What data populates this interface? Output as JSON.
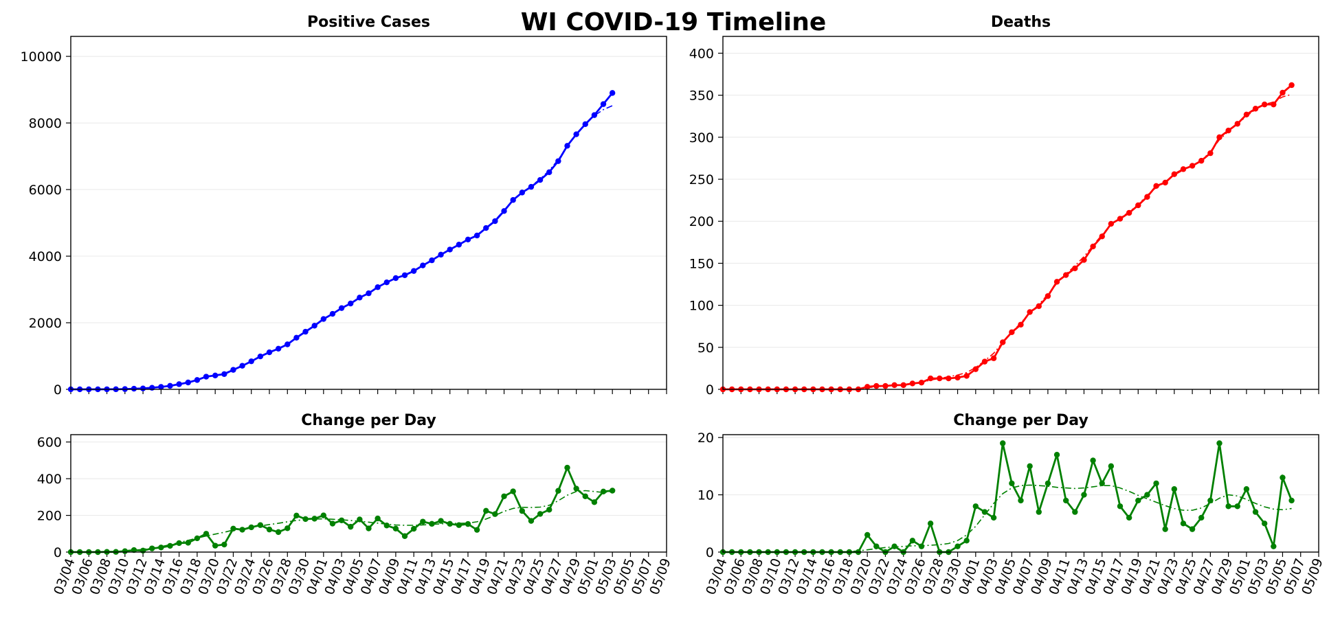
{
  "suptitle": "WI COVID-19 Timeline",
  "x_ticks": [
    "03/04",
    "03/06",
    "03/08",
    "03/10",
    "03/12",
    "03/14",
    "03/16",
    "03/18",
    "03/20",
    "03/22",
    "03/24",
    "03/26",
    "03/28",
    "03/30",
    "04/01",
    "04/03",
    "04/05",
    "04/07",
    "04/09",
    "04/11",
    "04/13",
    "04/15",
    "04/17",
    "04/19",
    "04/21",
    "04/23",
    "04/25",
    "04/27",
    "04/29",
    "05/01",
    "05/03",
    "05/05",
    "05/07",
    "05/09"
  ],
  "colors": {
    "cases": "#0000ff",
    "deaths": "#ff0000",
    "change": "#008000"
  },
  "chart_data": [
    {
      "type": "line",
      "title": "Positive Cases",
      "x_start": "03/04",
      "x_end": "05/09",
      "ylim": [
        0,
        10600
      ],
      "yticks": [
        0,
        2000,
        4000,
        6000,
        8000,
        10000
      ],
      "grid": "y",
      "series": [
        {
          "style": "solid-markers",
          "values": [
            1,
            1,
            1,
            1,
            2,
            3,
            8,
            19,
            27,
            47,
            72,
            106,
            155,
            206,
            281,
            381,
            416,
            457,
            585,
            707,
            842,
            989,
            1112,
            1221,
            1351,
            1550,
            1730,
            1912,
            2112,
            2267,
            2440,
            2578,
            2756,
            2885,
            3068,
            3213,
            3341,
            3428,
            3555,
            3721,
            3875,
            4045,
            4199,
            4346,
            4499,
            4620,
            4845,
            5052,
            5356,
            5687,
            5911,
            6081,
            6289,
            6520,
            6854,
            7314,
            7660,
            7964,
            8236,
            8566,
            8901
          ]
        },
        {
          "style": "dashdot",
          "values": [
            1,
            1,
            1,
            1,
            2,
            3,
            6,
            15,
            25,
            43,
            68,
            102,
            150,
            205,
            280,
            370,
            425,
            480,
            590,
            710,
            840,
            985,
            1110,
            1225,
            1355,
            1540,
            1720,
            1905,
            2100,
            2265,
            2435,
            2580,
            2750,
            2890,
            3060,
            3210,
            3340,
            3440,
            3560,
            3720,
            3875,
            4040,
            4195,
            4345,
            4495,
            4640,
            4850,
            5080,
            5380,
            5690,
            5910,
            6100,
            6320,
            6570,
            6900,
            7300,
            7650,
            7950,
            8220,
            8400,
            8520
          ]
        }
      ]
    },
    {
      "type": "line",
      "title": "Deaths",
      "x_start": "03/04",
      "x_end": "05/09",
      "ylim": [
        0,
        420
      ],
      "yticks": [
        0,
        50,
        100,
        150,
        200,
        250,
        300,
        350,
        400
      ],
      "grid": "y",
      "series": [
        {
          "style": "solid-markers",
          "values": [
            0,
            0,
            0,
            0,
            0,
            0,
            0,
            0,
            0,
            0,
            0,
            0,
            0,
            0,
            0,
            0,
            3,
            4,
            4,
            5,
            5,
            7,
            8,
            13,
            13,
            13,
            14,
            16,
            24,
            33,
            37,
            56,
            68,
            77,
            92,
            99,
            111,
            128,
            136,
            144,
            154,
            170,
            182,
            197,
            203,
            210,
            219,
            229,
            242,
            246,
            256,
            262,
            266,
            272,
            281,
            300,
            308,
            316,
            327,
            334,
            339,
            339,
            353,
            362
          ]
        },
        {
          "style": "dashdot",
          "values": [
            0,
            0,
            0,
            0,
            0,
            0,
            0,
            0,
            0,
            0,
            0,
            0,
            0,
            0,
            0,
            0,
            2,
            3,
            4,
            5,
            6,
            7,
            8,
            11,
            13,
            15,
            17,
            20,
            26,
            34,
            43,
            56,
            68,
            79,
            91,
            101,
            113,
            126,
            137,
            147,
            158,
            171,
            184,
            196,
            204,
            211,
            220,
            231,
            240,
            247,
            255,
            261,
            266,
            272,
            283,
            297,
            307,
            316,
            325,
            333,
            339,
            342,
            348,
            351
          ]
        }
      ]
    },
    {
      "type": "line",
      "title": "Change per Day",
      "x_start": "03/04",
      "x_end": "05/09",
      "ylim": [
        0,
        640
      ],
      "yticks": [
        0,
        200,
        400,
        600
      ],
      "grid": "y",
      "series": [
        {
          "style": "solid-markers",
          "values": [
            0,
            0,
            0,
            0,
            1,
            1,
            5,
            11,
            8,
            20,
            25,
            34,
            49,
            51,
            75,
            100,
            35,
            41,
            128,
            122,
            135,
            147,
            123,
            109,
            130,
            199,
            180,
            182,
            200,
            155,
            173,
            138,
            178,
            129,
            183,
            145,
            128,
            87,
            127,
            166,
            154,
            170,
            154,
            147,
            153,
            121,
            225,
            207,
            304,
            331,
            224,
            170,
            208,
            231,
            334,
            460,
            346,
            304,
            272,
            330,
            335
          ]
        },
        {
          "style": "dashdot",
          "values": [
            0,
            0,
            0,
            0,
            1,
            2,
            5,
            10,
            15,
            22,
            30,
            40,
            52,
            64,
            76,
            88,
            98,
            108,
            120,
            128,
            136,
            143,
            150,
            157,
            165,
            172,
            177,
            180,
            181,
            179,
            176,
            172,
            168,
            163,
            158,
            152,
            148,
            146,
            146,
            148,
            151,
            154,
            156,
            157,
            158,
            165,
            180,
            200,
            222,
            238,
            244,
            243,
            245,
            255,
            280,
            310,
            330,
            335,
            330,
            325,
            330
          ]
        }
      ]
    },
    {
      "type": "line",
      "title": "Change per Day",
      "x_start": "03/04",
      "x_end": "05/09",
      "ylim": [
        0,
        20.5
      ],
      "yticks": [
        0,
        10,
        20
      ],
      "grid": "y",
      "series": [
        {
          "style": "solid-markers",
          "values": [
            0,
            0,
            0,
            0,
            0,
            0,
            0,
            0,
            0,
            0,
            0,
            0,
            0,
            0,
            0,
            0,
            3,
            1,
            0,
            1,
            0,
            2,
            1,
            5,
            0,
            0,
            1,
            2,
            8,
            7,
            6,
            19,
            12,
            9,
            15,
            7,
            12,
            17,
            9,
            7,
            10,
            16,
            12,
            15,
            8,
            6,
            9,
            10,
            12,
            4,
            11,
            5,
            4,
            6,
            9,
            19,
            8,
            8,
            11,
            7,
            5,
            1,
            13,
            9
          ]
        },
        {
          "style": "dashdot",
          "values": [
            0,
            0,
            0,
            0,
            0,
            0,
            0,
            0,
            0,
            0,
            0,
            0,
            0,
            0,
            0.1,
            0.2,
            0.4,
            0.6,
            0.8,
            0.9,
            1,
            1.1,
            1.1,
            1.2,
            1.3,
            1.5,
            2,
            3,
            4.5,
            6.5,
            8.5,
            10.2,
            11.2,
            11.6,
            11.7,
            11.6,
            11.5,
            11.3,
            11.2,
            11.1,
            11.2,
            11.4,
            11.6,
            11.6,
            11.2,
            10.6,
            9.9,
            9.3,
            8.7,
            8.1,
            7.6,
            7.3,
            7.3,
            7.7,
            8.5,
            9.4,
            10,
            9.8,
            9.2,
            8.5,
            7.9,
            7.5,
            7.4,
            7.6
          ]
        }
      ]
    }
  ]
}
